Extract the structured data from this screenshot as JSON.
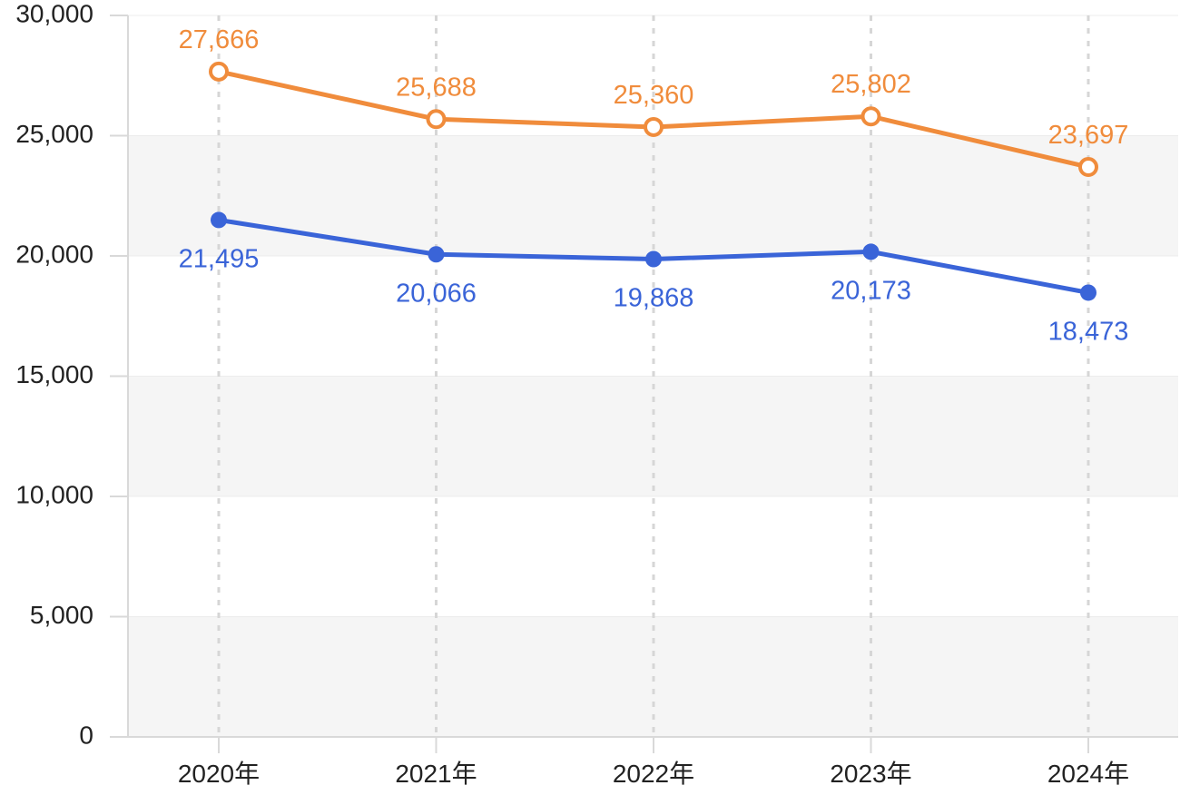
{
  "chart_data": {
    "type": "line",
    "categories": [
      "2020年",
      "2021年",
      "2022年",
      "2023年",
      "2024年"
    ],
    "series": [
      {
        "values": [
          27666,
          25688,
          25360,
          25802,
          23697
        ],
        "labels": [
          "27,666",
          "25,688",
          "25,360",
          "25,802",
          "23,697"
        ],
        "color": "#f08c3c",
        "marker": "hollow-circle",
        "label_position": "above"
      },
      {
        "values": [
          21495,
          20066,
          19868,
          20173,
          18473
        ],
        "labels": [
          "21,495",
          "20,066",
          "19,868",
          "20,173",
          "18,473"
        ],
        "color": "#3a64d8",
        "marker": "filled-circle",
        "label_position": "below"
      }
    ],
    "ylim": [
      0,
      30000
    ],
    "yticks": [
      0,
      5000,
      10000,
      15000,
      20000,
      25000,
      30000
    ],
    "ytick_labels": [
      "0",
      "5,000",
      "10,000",
      "15,000",
      "20,000",
      "25,000",
      "30,000"
    ],
    "title": "",
    "xlabel": "",
    "ylabel": "",
    "grid": "alternating horizontal bands, dashed vertical lines at categories",
    "band_color": "#f5f5f5",
    "axis_color": "#d9d9d9",
    "legend": "none"
  }
}
